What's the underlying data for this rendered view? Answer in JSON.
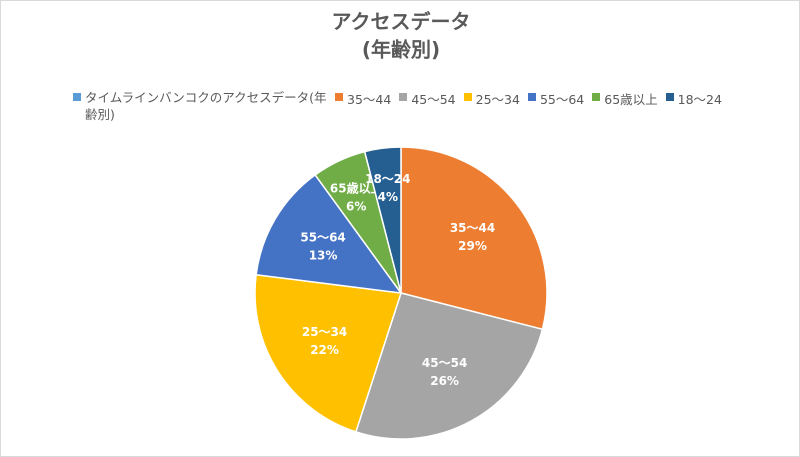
{
  "chart_data": {
    "type": "pie",
    "title": "アクセスデータ",
    "subtitle": "(年齢別)",
    "series_name": "タイムラインバンコクのアクセスデータ(年齢別)",
    "series_color": "#5b9bd5",
    "categories": [
      "35〜44",
      "45〜54",
      "25〜34",
      "55〜64",
      "65歳以上",
      "18〜24"
    ],
    "values": [
      29,
      26,
      22,
      13,
      6,
      4
    ],
    "value_labels": [
      "29%",
      "26%",
      "22%",
      "13%",
      "6%",
      "4%"
    ],
    "colors": [
      "#ed7d31",
      "#a5a5a5",
      "#ffc000",
      "#4472c4",
      "#70ad47",
      "#255e91"
    ],
    "legend": "top"
  }
}
